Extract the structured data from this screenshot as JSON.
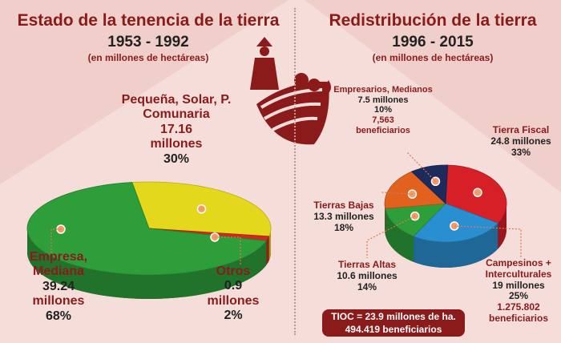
{
  "chart_data": [
    {
      "type": "pie",
      "title": "Estado de la tenencia de la tierra",
      "subtitle": "1953 - 1992",
      "unit": "(en millones de hectáreas)",
      "slices": [
        {
          "name": "Pequeña, Solar, P. Comunaria",
          "value": 17.16,
          "value_text": "17.16",
          "unit_text": "millones",
          "percent": "30%",
          "color": "#e3d81c"
        },
        {
          "name": "Otros",
          "value": 0.9,
          "value_text": "0.9",
          "unit_text": "millones",
          "percent": "2%",
          "color": "#cf2a1e"
        },
        {
          "name": "Empresa, Mediana",
          "value": 39.24,
          "value_text": "39.24",
          "unit_text": "millones",
          "percent": "68%",
          "color": "#2e9e3a"
        }
      ]
    },
    {
      "type": "pie",
      "title": "Redistribución de la tierra",
      "subtitle": "1996 - 2015",
      "unit": "(en millones de hectáreas)",
      "slices": [
        {
          "name": "Tierra Fiscal",
          "value": 24.8,
          "value_text": "24.8 millones",
          "percent": "33%",
          "color": "#d61f26"
        },
        {
          "name": "Campesinos + Interculturales",
          "value": 19,
          "value_text": "19 millones",
          "percent": "25%",
          "beneficiaries": "1.275.802",
          "beneficiaries_label": "beneficiarios",
          "color": "#2a8fd0"
        },
        {
          "name": "Tierras Altas",
          "value": 10.6,
          "value_text": "10.6 millones",
          "percent": "14%",
          "color": "#2e9e3a"
        },
        {
          "name": "Tierras Bajas",
          "value": 13.3,
          "value_text": "13.3 millones",
          "percent": "18%",
          "color": "#e0621e"
        },
        {
          "name": "Empresarios, Medianos",
          "value": 7.5,
          "value_text": "7.5 millones",
          "percent": "10%",
          "beneficiaries": "7,563",
          "beneficiaries_label": "beneficiarios",
          "color": "#1c2a5c"
        }
      ],
      "tioc": {
        "line1": "TIOC = 23.9 millones de ha.",
        "line2": "494.419 beneficiarios"
      }
    }
  ]
}
